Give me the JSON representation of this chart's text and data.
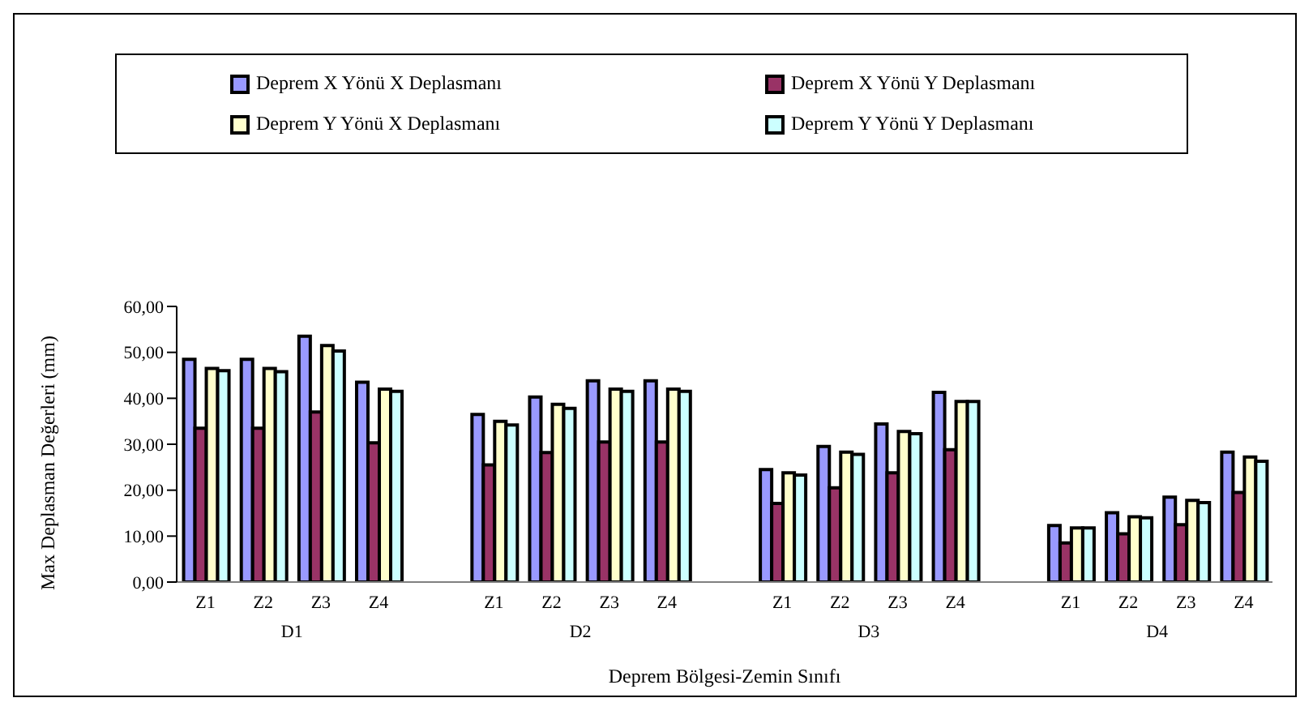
{
  "chart_data": {
    "type": "bar",
    "xlabel": "Deprem Bölgesi-Zemin Sınıfı",
    "ylabel": "Max Deplasman Değerleri (mm)",
    "categories": [
      "Z1",
      "Z2",
      "Z3",
      "Z4",
      null,
      "Z1",
      "Z2",
      "Z3",
      "Z4",
      null,
      "Z1",
      "Z2",
      "Z3",
      "Z4",
      null,
      "Z1",
      "Z2",
      "Z3",
      "Z4"
    ],
    "annotations": [
      "D1",
      "D2",
      "D3",
      "D4"
    ],
    "series": [
      {
        "name": "Deprem X Yönü X Deplasmanı",
        "color": "#9999ff",
        "values": [
          48.5,
          48.5,
          53.5,
          43.5,
          null,
          36.5,
          40.3,
          43.8,
          43.8,
          null,
          24.5,
          29.5,
          34.4,
          41.3,
          null,
          12.3,
          15.1,
          18.5,
          28.3
        ]
      },
      {
        "name": "Deprem X Yönü Y Deplasmanı",
        "color": "#993366",
        "values": [
          33.5,
          33.5,
          37,
          30.3,
          null,
          25.5,
          28.2,
          30.5,
          30.5,
          null,
          17.1,
          20.5,
          23.8,
          28.8,
          null,
          8.5,
          10.5,
          12.5,
          19.5
        ]
      },
      {
        "name": "Deprem Y Yönü X Deplasmanı",
        "color": "#ffffcc",
        "values": [
          46.5,
          46.5,
          51.5,
          42,
          null,
          35,
          38.7,
          42,
          42,
          null,
          23.8,
          28.3,
          32.8,
          39.3,
          null,
          11.8,
          14.2,
          17.8,
          27.2
        ]
      },
      {
        "name": "Deprem Y Yönü Y Deplasmanı",
        "color": "#ccffff",
        "values": [
          46,
          45.8,
          50.3,
          41.5,
          null,
          34.2,
          37.8,
          41.5,
          41.5,
          null,
          23.3,
          27.8,
          32.3,
          39.3,
          null,
          11.8,
          14,
          17.3,
          26.3
        ]
      }
    ],
    "ylim": [
      0,
      60
    ],
    "yticks": [
      {
        "value": 0,
        "label": "0,00"
      },
      {
        "value": 10,
        "label": "10,00"
      },
      {
        "value": 20,
        "label": "20,00"
      },
      {
        "value": 30,
        "label": "30,00"
      },
      {
        "value": 40,
        "label": "40,00"
      },
      {
        "value": 50,
        "label": "50,00"
      },
      {
        "value": 60,
        "label": "60,00"
      }
    ],
    "grid": false,
    "legend": "top"
  }
}
